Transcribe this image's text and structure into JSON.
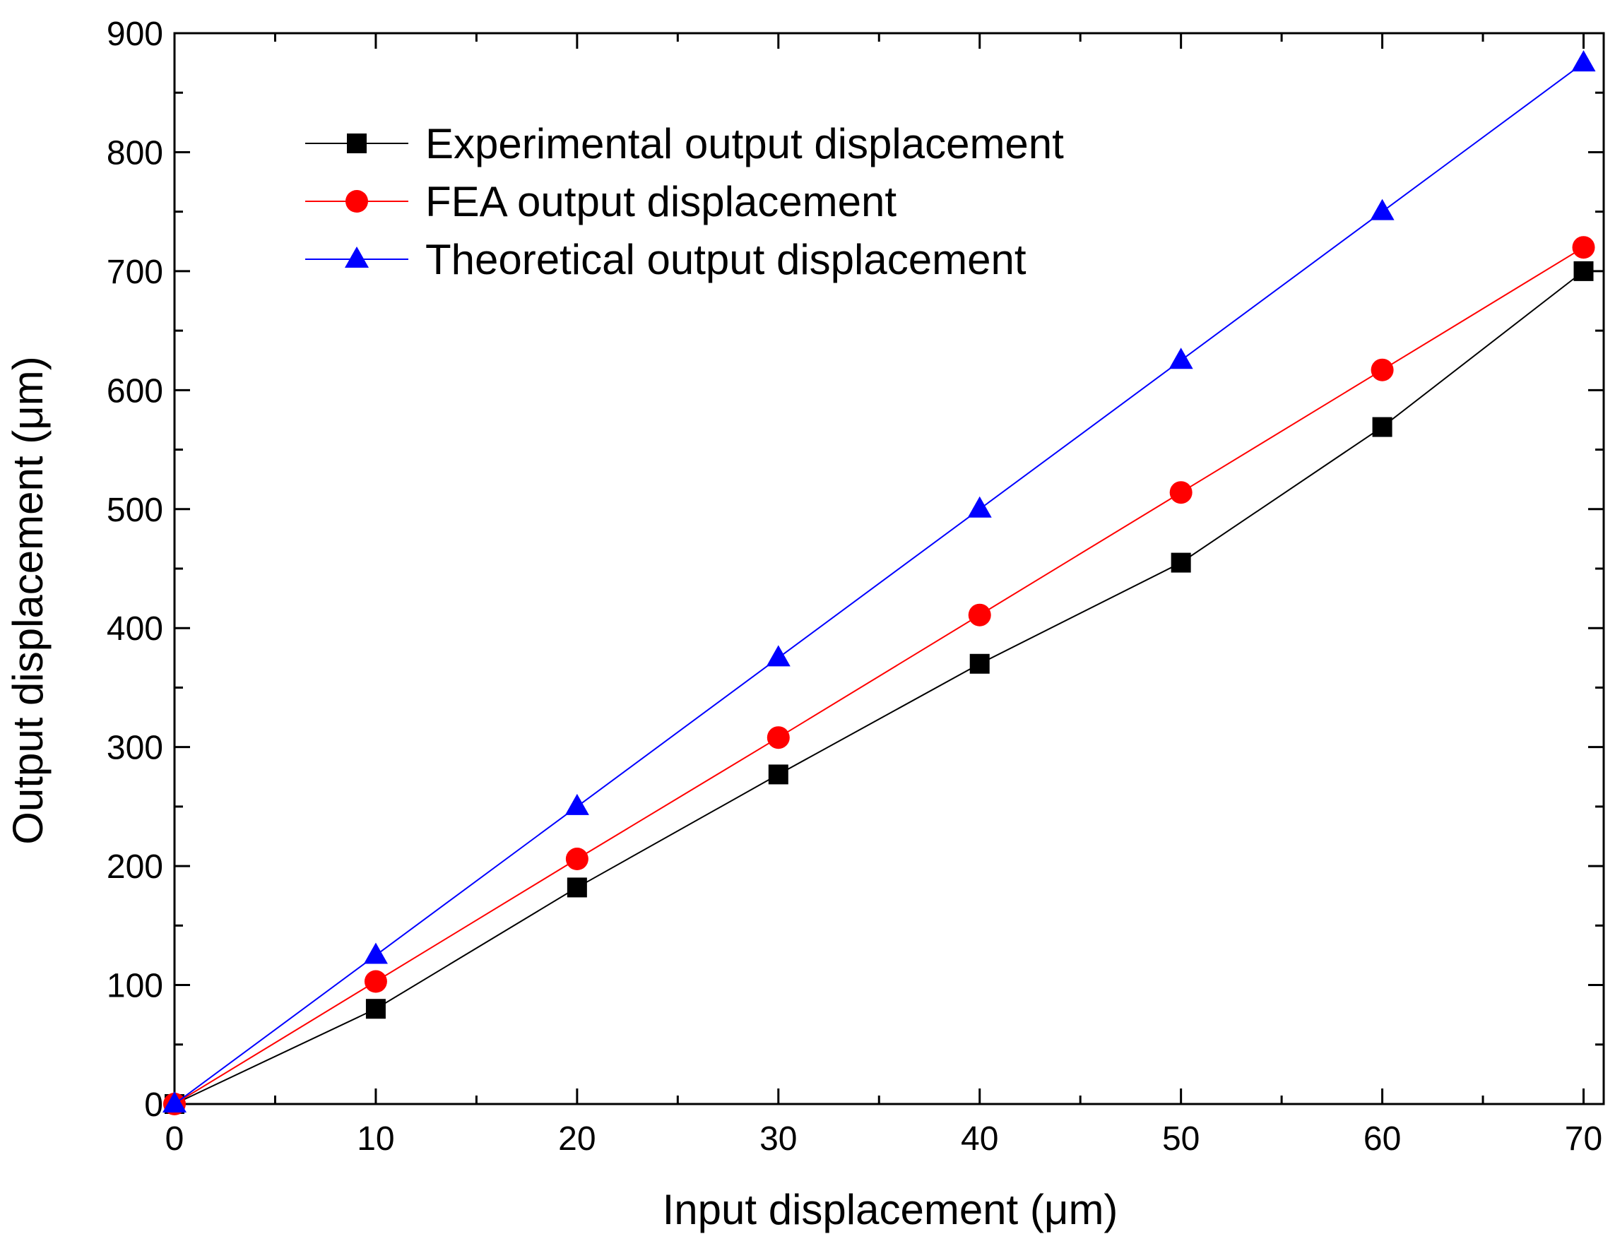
{
  "chart_data": {
    "type": "line",
    "title": "",
    "xlabel": "Input displacement (μm)",
    "ylabel": "Output displacement (μm)",
    "xlim": [
      0,
      71
    ],
    "ylim": [
      0,
      900
    ],
    "xticks": [
      0,
      10,
      20,
      30,
      40,
      50,
      60,
      70
    ],
    "yticks": [
      0,
      100,
      200,
      300,
      400,
      500,
      600,
      700,
      800,
      900
    ],
    "xtick_labels": [
      "0",
      "10",
      "20",
      "30",
      "40",
      "50",
      "60",
      "70"
    ],
    "ytick_labels": [
      "0",
      "100",
      "200",
      "300",
      "400",
      "500",
      "600",
      "700",
      "800",
      "900"
    ],
    "x_minor_step": 5,
    "y_minor_step": 50,
    "grid": false,
    "legend_position": "top-left",
    "x": [
      0,
      10,
      20,
      30,
      40,
      50,
      60,
      70
    ],
    "series": [
      {
        "name": "Experimental output displacement",
        "color": "#000000",
        "marker": "square",
        "values": [
          0,
          80,
          182,
          277,
          370,
          455,
          569,
          700
        ]
      },
      {
        "name": "FEA output displacement",
        "color": "#ff0000",
        "marker": "circle",
        "values": [
          0,
          103,
          206,
          308,
          411,
          514,
          617,
          720
        ]
      },
      {
        "name": "Theoretical output displacement",
        "color": "#0000ff",
        "marker": "triangle",
        "values": [
          0,
          125,
          250,
          375,
          500,
          625,
          750,
          875
        ]
      }
    ]
  }
}
